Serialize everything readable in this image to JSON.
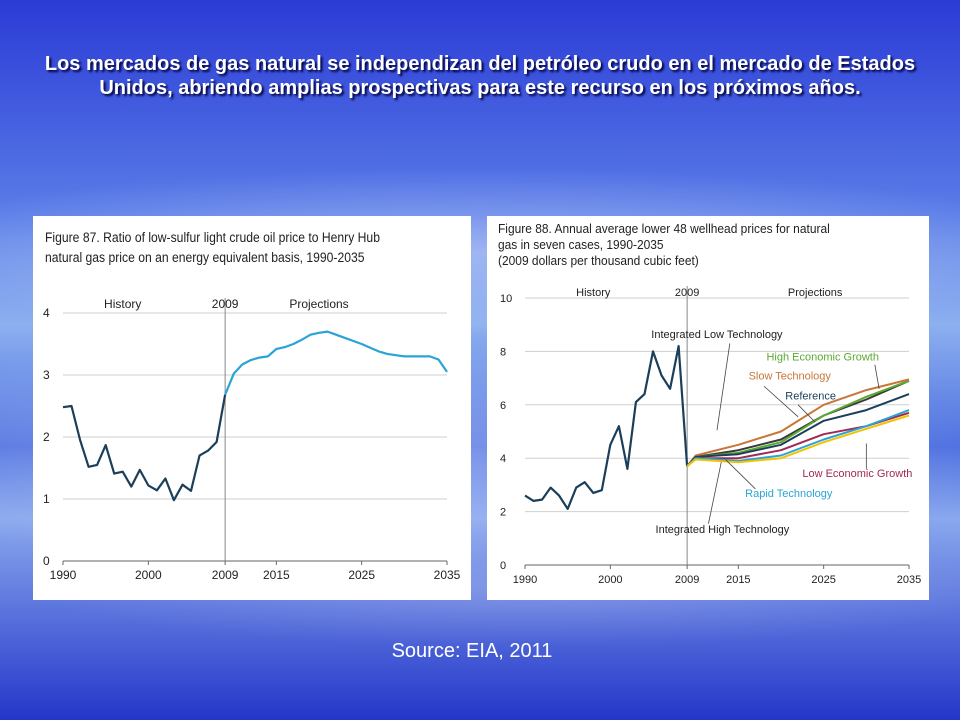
{
  "slide": {
    "title": "Los mercados de gas natural se independizan del petróleo crudo en el mercado de Estados Unidos, abriendo amplias prospectivas para este recurso en los próximos años.",
    "source": "Source: EIA, 2011"
  },
  "chart_data": [
    {
      "type": "line",
      "title_line1": "Figure 87. Ratio of low-sulfur light crude oil price to Henry Hub",
      "title_line2": "natural gas price on an energy equivalent basis, 1990-2035",
      "annotations": [
        "History",
        "2009",
        "Projections"
      ],
      "xlim": [
        1990,
        2035
      ],
      "ylim": [
        0,
        4
      ],
      "xticks": [
        1990,
        2000,
        2009,
        2015,
        2025,
        2035
      ],
      "yticks": [
        0,
        1,
        2,
        3,
        4
      ],
      "divider_year": 2009,
      "grid": "horizontal",
      "colors": {
        "history": "#1b3f5a",
        "projection": "#2aa3d6"
      },
      "series": [
        {
          "segment": "history",
          "x": [
            1990,
            1991,
            1992,
            1993,
            1994,
            1995,
            1996,
            1997,
            1998,
            1999,
            2000,
            2001,
            2002,
            2003,
            2004,
            2005,
            2006,
            2007,
            2008,
            2009
          ],
          "y": [
            2.48,
            2.5,
            1.95,
            1.52,
            1.55,
            1.87,
            1.41,
            1.44,
            1.2,
            1.47,
            1.22,
            1.14,
            1.33,
            0.98,
            1.23,
            1.13,
            1.7,
            1.78,
            1.92,
            2.68
          ]
        },
        {
          "segment": "projection",
          "x": [
            2009,
            2010,
            2011,
            2012,
            2013,
            2014,
            2015,
            2016,
            2017,
            2018,
            2019,
            2020,
            2021,
            2022,
            2023,
            2024,
            2025,
            2026,
            2027,
            2028,
            2029,
            2030,
            2031,
            2032,
            2033,
            2034,
            2035
          ],
          "y": [
            2.68,
            3.02,
            3.17,
            3.24,
            3.28,
            3.3,
            3.42,
            3.45,
            3.5,
            3.57,
            3.65,
            3.68,
            3.7,
            3.65,
            3.6,
            3.55,
            3.5,
            3.44,
            3.38,
            3.34,
            3.32,
            3.3,
            3.3,
            3.3,
            3.3,
            3.25,
            3.05
          ]
        }
      ]
    },
    {
      "type": "line",
      "title_line1": "Figure 88. Annual average lower 48 wellhead prices for natural",
      "title_line2": "gas in seven cases, 1990-2035",
      "title_line3": "(2009 dollars per thousand cubic feet)",
      "annotations": [
        "History",
        "2009",
        "Projections"
      ],
      "xlim": [
        1990,
        2035
      ],
      "ylim": [
        0,
        10
      ],
      "xticks": [
        1990,
        2000,
        2009,
        2015,
        2025,
        2035
      ],
      "yticks": [
        0,
        2,
        4,
        6,
        8,
        10
      ],
      "divider_year": 2009,
      "grid": "horizontal",
      "history": {
        "color": "#1b3f5a",
        "x": [
          1990,
          1991,
          1992,
          1993,
          1994,
          1995,
          1996,
          1997,
          1998,
          1999,
          2000,
          2001,
          2002,
          2003,
          2004,
          2005,
          2006,
          2007,
          2008,
          2009
        ],
        "y": [
          2.6,
          2.4,
          2.45,
          2.9,
          2.6,
          2.1,
          2.9,
          3.1,
          2.7,
          2.8,
          4.5,
          5.2,
          3.6,
          6.1,
          6.4,
          8.0,
          7.1,
          6.6,
          8.2,
          3.7
        ]
      },
      "cases": [
        {
          "name": "Integrated Low Technology",
          "color": "#3a3a3a",
          "x": [
            2009,
            2010,
            2015,
            2020,
            2025,
            2030,
            2035
          ],
          "y": [
            3.7,
            4.05,
            4.3,
            4.7,
            5.6,
            6.2,
            6.9
          ]
        },
        {
          "name": "High Economic Growth",
          "color": "#5da832",
          "x": [
            2009,
            2010,
            2015,
            2020,
            2025,
            2030,
            2035
          ],
          "y": [
            3.7,
            4.05,
            4.2,
            4.6,
            5.6,
            6.3,
            6.9
          ]
        },
        {
          "name": "Slow Technology",
          "color": "#c8763a",
          "x": [
            2009,
            2010,
            2015,
            2020,
            2025,
            2030,
            2035
          ],
          "y": [
            3.7,
            4.1,
            4.5,
            5.0,
            6.0,
            6.55,
            6.95
          ]
        },
        {
          "name": "Reference",
          "color": "#1b3f5a",
          "x": [
            2009,
            2010,
            2015,
            2020,
            2025,
            2030,
            2035
          ],
          "y": [
            3.7,
            4.05,
            4.15,
            4.5,
            5.4,
            5.8,
            6.4
          ]
        },
        {
          "name": "Low Economic Growth",
          "color": "#a22a52",
          "x": [
            2009,
            2010,
            2015,
            2020,
            2025,
            2030,
            2035
          ],
          "y": [
            3.7,
            4.0,
            4.0,
            4.3,
            4.9,
            5.2,
            5.7
          ]
        },
        {
          "name": "Rapid Technology",
          "color": "#2aa3d6",
          "x": [
            2009,
            2010,
            2015,
            2020,
            2025,
            2030,
            2035
          ],
          "y": [
            3.7,
            4.0,
            3.9,
            4.1,
            4.7,
            5.2,
            5.8
          ]
        },
        {
          "name": "Integrated High Technology",
          "color": "#f2c200",
          "x": [
            2009,
            2010,
            2015,
            2020,
            2025,
            2030,
            2035
          ],
          "y": [
            3.7,
            3.95,
            3.85,
            4.0,
            4.6,
            5.1,
            5.6
          ]
        }
      ]
    }
  ]
}
